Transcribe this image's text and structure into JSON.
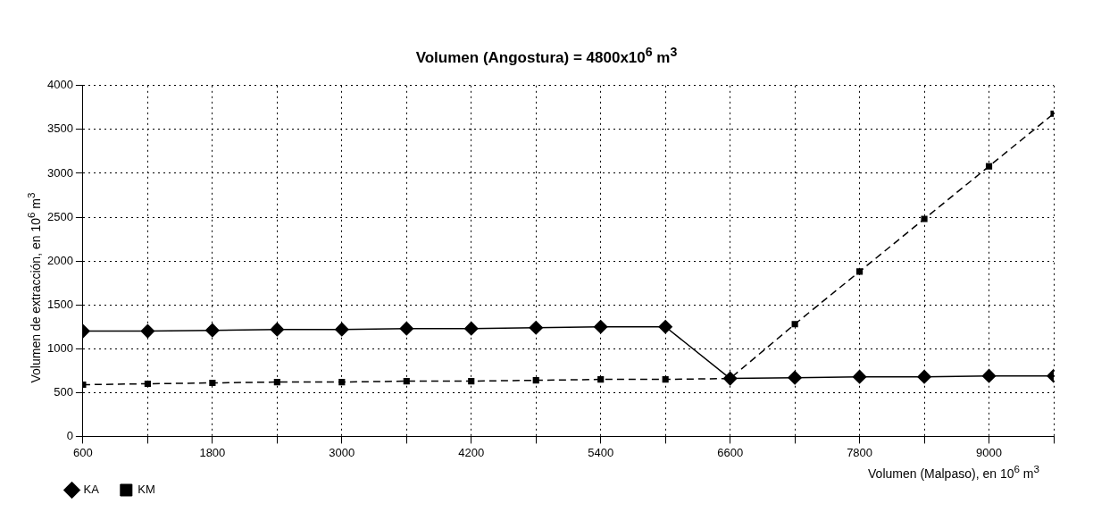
{
  "chart_data": {
    "type": "line",
    "title": "Volumen (Angostura) = 4800x10$^{6}$ m$^{3}$",
    "xlabel": "Volumen (Malpaso), en 10$^{6}$ m$^{3}$",
    "ylabel": "Volumen de extracción, en 10$^{6}$ m$^{3}$",
    "x": [
      600,
      1200,
      1800,
      2400,
      3000,
      3600,
      4200,
      4800,
      5400,
      6000,
      6600,
      7200,
      7800,
      8400,
      9000,
      9600
    ],
    "series": [
      {
        "name": "KA",
        "color": "#000000",
        "marker": "diamond",
        "line_style": "solid",
        "values": [
          1200,
          1200,
          1210,
          1220,
          1220,
          1230,
          1230,
          1240,
          1250,
          1250,
          660,
          670,
          680,
          680,
          690,
          690
        ]
      },
      {
        "name": "KM",
        "color": "#000000",
        "marker": "square",
        "line_style": "dashed",
        "values": [
          590,
          600,
          610,
          620,
          620,
          630,
          630,
          640,
          650,
          650,
          660,
          1280,
          1880,
          2480,
          3080,
          3680
        ]
      }
    ],
    "xlim": [
      600,
      9600
    ],
    "xticks": [
      600,
      {
        "value": 1200,
        "label": null
      },
      1800,
      {
        "value": 2400,
        "label": null
      },
      3000,
      {
        "value": 3600,
        "label": null
      },
      4200,
      {
        "value": 4800,
        "label": null
      },
      5400,
      {
        "value": 6000,
        "label": null
      },
      6600,
      {
        "value": 7200,
        "label": null
      },
      7800,
      {
        "value": 8400,
        "label": null
      },
      9000,
      {
        "value": 9600,
        "label": null
      }
    ],
    "ylim": [
      0,
      4000
    ],
    "yticks": [
      0,
      500,
      1000,
      1500,
      2000,
      2500,
      3000,
      3500,
      4000
    ],
    "grid": true,
    "legend": "bottom left"
  }
}
